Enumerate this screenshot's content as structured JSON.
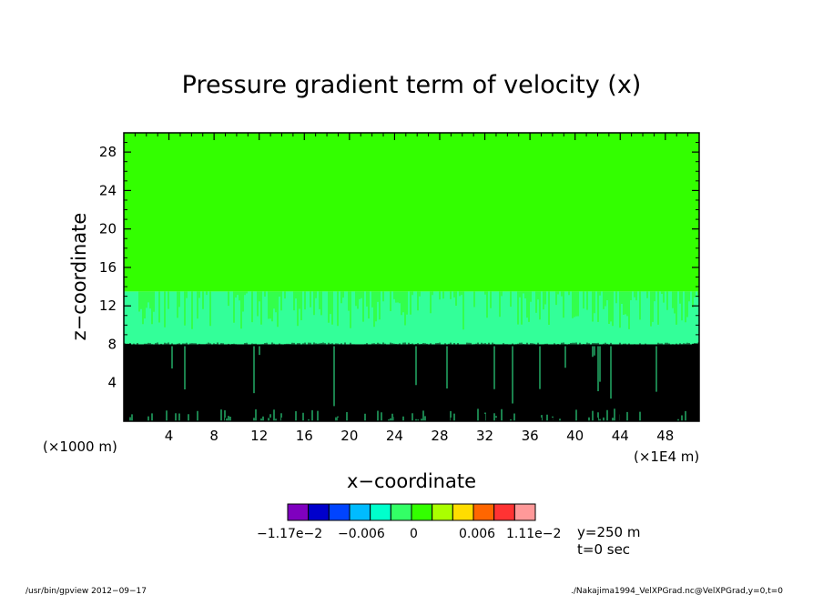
{
  "chart_data": {
    "type": "heatmap",
    "title": "Pressure gradient term of velocity (x)",
    "xlabel": "x−coordinate",
    "ylabel": "z−coordinate",
    "x_unit_left": "(×1000 m)",
    "x_unit_right": "(×1E4 m)",
    "x_ticks": [
      4,
      8,
      12,
      16,
      20,
      24,
      28,
      32,
      36,
      40,
      44,
      48
    ],
    "y_ticks": [
      4,
      8,
      12,
      16,
      20,
      24,
      28
    ],
    "xlim": [
      0,
      51
    ],
    "ylim": [
      0,
      30
    ],
    "bands": [
      {
        "z_from": 0,
        "z_to": 8,
        "color": "#000000"
      },
      {
        "z_from": 8,
        "z_to": 13.5,
        "color": "#33ff99"
      },
      {
        "z_from": 13.5,
        "z_to": 30,
        "color": "#33ff00"
      }
    ],
    "colorbar": {
      "colors": [
        "#7f00bf",
        "#0000cc",
        "#0044ff",
        "#00bbff",
        "#00ffcc",
        "#33ff66",
        "#33ff00",
        "#aaff00",
        "#ffdd00",
        "#ff6600",
        "#ff3333",
        "#ff9999"
      ],
      "labels": [
        "−1.17e−2",
        "−0.006",
        "0",
        "0.006",
        "1.11e−2"
      ]
    },
    "annotations": [
      "y=250 m",
      "t=0 sec"
    ]
  },
  "footer": {
    "left": "/usr/bin/gpview  2012−09−17",
    "right": "./Nakajima1994_VelXPGrad.nc@VelXPGrad,y=0,t=0"
  }
}
